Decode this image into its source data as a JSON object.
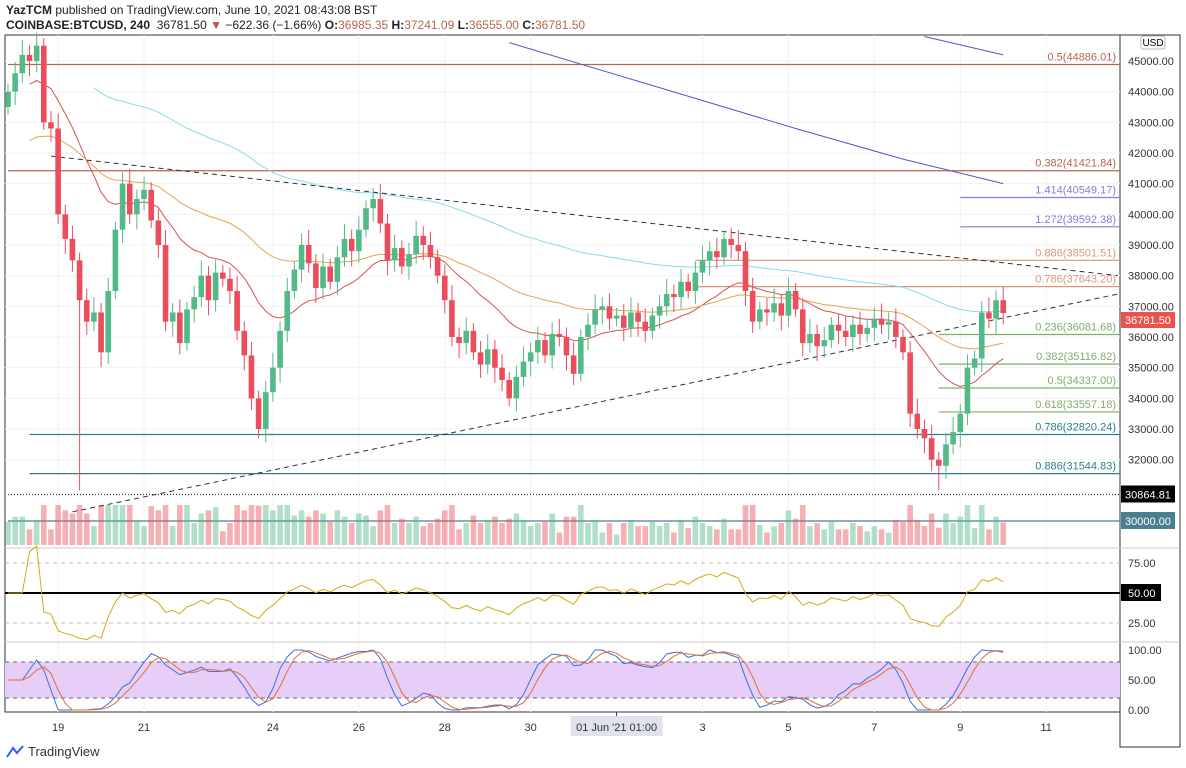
{
  "header": {
    "author": "YazTCM",
    "published": "published on TradingView.com, June 10, 2021 08:43:08 BST",
    "symbol": "COINBASE:BTCUSD, 240",
    "last": "36781.50",
    "change": "−622.36 (−1.66%)",
    "o_label": "O:",
    "o": "36985.35",
    "h_label": "H:",
    "h": "37241.09",
    "l_label": "L:",
    "l": "36555.00",
    "c_label": "C:",
    "c": "36781.50"
  },
  "footer": {
    "brand": "TradingView"
  },
  "colors": {
    "up": "#53b987",
    "down": "#eb4d5c",
    "ema_fast": "#d9534f",
    "ema_mid": "#e8a14b",
    "ema_slow": "#80deea",
    "ma_long": "#5b54c9",
    "rsi": "#d4ac0d",
    "stoch_k": "#3f6fd8",
    "stoch_d": "#e07030",
    "stoch_band": "#e6cef9"
  },
  "chart_data": {
    "type": "candlestick",
    "currency": "USD",
    "price_ticks": [
      "45000.00",
      "44000.00",
      "43000.00",
      "42000.00",
      "41000.00",
      "40000.00",
      "39000.00",
      "38000.00",
      "37000.00",
      "36000.00",
      "35000.00",
      "34000.00",
      "33000.00",
      "32000.00"
    ],
    "price_tick_values": [
      45000,
      44000,
      43000,
      42000,
      41000,
      40000,
      39000,
      38000,
      37000,
      36000,
      35000,
      34000,
      33000,
      32000
    ],
    "x_ticks": [
      {
        "label": "19",
        "index": 7
      },
      {
        "label": "21",
        "index": 19
      },
      {
        "label": "24",
        "index": 37
      },
      {
        "label": "26",
        "index": 49
      },
      {
        "label": "28",
        "index": 61
      },
      {
        "label": "30",
        "index": 73
      },
      {
        "label": "3",
        "index": 97
      },
      {
        "label": "5",
        "index": 109
      },
      {
        "label": "7",
        "index": 121
      },
      {
        "label": "9",
        "index": 133
      },
      {
        "label": "11",
        "index": 145
      }
    ],
    "x_highlight": {
      "label": "01 Jun '21  01:00",
      "index": 85
    },
    "first_open": 43500,
    "closes": [
      44000,
      44600,
      45200,
      45000,
      45500,
      43000,
      42800,
      40000,
      39200,
      38500,
      37200,
      36500,
      36800,
      35500,
      37500,
      39500,
      41000,
      40000,
      40500,
      40800,
      39800,
      39000,
      36500,
      36800,
      35800,
      36900,
      37300,
      38000,
      37200,
      38100,
      37900,
      37500,
      36200,
      35400,
      34000,
      33000,
      34200,
      35000,
      36200,
      37500,
      38200,
      39000,
      38400,
      37600,
      38300,
      37800,
      38600,
      39200,
      38800,
      39500,
      40200,
      40500,
      39700,
      38500,
      38900,
      38300,
      38700,
      39300,
      39000,
      38600,
      38000,
      37200,
      36000,
      35800,
      36200,
      35500,
      35100,
      35600,
      35000,
      34600,
      34000,
      34700,
      35200,
      35500,
      35900,
      35400,
      36100,
      36000,
      35400,
      34800,
      36000,
      36400,
      36900,
      37000,
      36600,
      36700,
      36300,
      36800,
      36500,
      36200,
      36700,
      37000,
      37400,
      37300,
      37800,
      37500,
      38100,
      38500,
      38800,
      38600,
      39200,
      39000,
      38800,
      37500,
      36500,
      36900,
      36800,
      37100,
      36700,
      37500,
      36900,
      35800,
      36100,
      35700,
      35900,
      36400,
      36200,
      36000,
      36400,
      36100,
      36300,
      36600,
      36400,
      36500,
      36000,
      35500,
      33500,
      33000,
      32700,
      32000,
      31800,
      32500,
      32900,
      33500,
      35000,
      35300,
      36800,
      36600,
      37200,
      36781.5
    ],
    "low_overrides": {
      "10": 31000,
      "35": 32700,
      "130": 31000
    },
    "ma_long_points": [
      [
        70,
        45600
      ],
      [
        90,
        44200
      ],
      [
        110,
        42800
      ],
      [
        125,
        41800
      ],
      [
        139,
        41000
      ]
    ],
    "ma_top_points": [
      [
        128,
        45800
      ],
      [
        139,
        45200
      ]
    ],
    "trendlines": [
      {
        "name": "resistance",
        "from": [
          6,
          41900
        ],
        "to": [
          155,
          38000
        ]
      },
      {
        "name": "support",
        "from": [
          9,
          30300
        ],
        "to": [
          155,
          37400
        ]
      }
    ],
    "levels": [
      {
        "label": "0.5(44886.01)",
        "value": 44886.01,
        "from_index": 0,
        "color": "#b5654f",
        "style": "solid"
      },
      {
        "label": "0.382(41421.84)",
        "value": 41421.84,
        "from_index": 0,
        "color": "#b5654f",
        "style": "solid"
      },
      {
        "label": "1.414(40549.17)",
        "value": 40549.17,
        "from_index": 133,
        "color": "#8d7ad6",
        "style": "solid"
      },
      {
        "label": "1.272(39592.38)",
        "value": 39592.38,
        "from_index": 133,
        "color": "#8d7ad6",
        "style": "solid"
      },
      {
        "label": "0.886(38501.51)",
        "value": 38501.51,
        "from_index": 96,
        "color": "#d49a7a",
        "style": "solid"
      },
      {
        "label": "0.786(37643.20)",
        "value": 37643.2,
        "from_index": 96,
        "color": "#d49a7a",
        "style": "solid"
      },
      {
        "label": "0.236(36081.68)",
        "value": 36081.68,
        "from_index": 130,
        "color": "#7fae6a",
        "style": "solid"
      },
      {
        "label": "0.382(35116.82)",
        "value": 35116.82,
        "from_index": 130,
        "color": "#7fae6a",
        "style": "solid"
      },
      {
        "label": "0.5(34337.00)",
        "value": 34337,
        "from_index": 130,
        "color": "#7fae6a",
        "style": "solid"
      },
      {
        "label": "0.618(33557.18)",
        "value": 33557.18,
        "from_index": 130,
        "color": "#7fae6a",
        "style": "solid"
      },
      {
        "label": "0.786(32820.24)",
        "value": 32820.24,
        "from_index": 3,
        "color": "#2f7f8a",
        "style": "solid"
      },
      {
        "label": "0.886(31544.83)",
        "value": 31544.83,
        "from_index": 3,
        "color": "#2f7f8a",
        "style": "solid"
      },
      {
        "label": "",
        "value": 30864.81,
        "from_index": 0,
        "color": "#333333",
        "style": "dotted",
        "tag": "30864.81",
        "tag_bg": "#000000"
      },
      {
        "label": "",
        "value": 30000,
        "from_index": 0,
        "color": "#4a7f90",
        "style": "solid",
        "tag": "30000.00",
        "tag_bg": "#4a7f90"
      }
    ],
    "last_price_tag": "36781.50",
    "rsi": {
      "ticks": [
        "75.00",
        "50.00",
        "25.00"
      ],
      "tick_values": [
        75,
        50,
        25
      ],
      "mid_tag": "50.00",
      "period": 14
    },
    "stoch": {
      "ticks": [
        "100.00",
        "50.00",
        "0.00"
      ],
      "tick_values": [
        100,
        50,
        0
      ],
      "band": [
        20,
        80
      ]
    }
  }
}
